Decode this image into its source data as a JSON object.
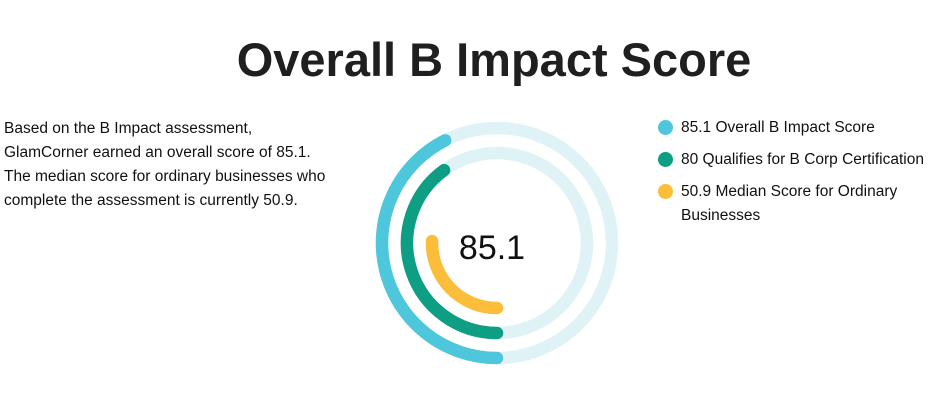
{
  "page": {
    "title": "Overall B Impact Score",
    "description": "Based on the B Impact assessment, GlamCorner earned an overall score of 85.1. The median score for ordinary businesses who complete the assessment is currently 50.9."
  },
  "chart_data": {
    "type": "radial-bar",
    "center_label": "85.1",
    "max_value": 200,
    "start_angle_deg": 180,
    "series": [
      {
        "name": "85.1 Overall B Impact Score",
        "value": 85.1,
        "color": "#4ec6db",
        "track_color": "#dff3f7"
      },
      {
        "name": "80 Qualifies for B Corp Certification",
        "value": 80,
        "color": "#0e9e83",
        "track_color": "#dff3f7"
      },
      {
        "name": "50.9 Median Score for Ordinary Businesses",
        "value": 50.9,
        "color": "#fbbd3a",
        "track_color": "#ffffff"
      }
    ]
  }
}
